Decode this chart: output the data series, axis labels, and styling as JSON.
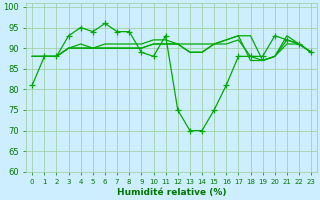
{
  "background_color": "#cceeff",
  "grid_color": "#99cc99",
  "line_color": "#00aa00",
  "marker": "+",
  "markersize": 4,
  "linewidth": 0.9,
  "xlabel": "Humidité relative (%)",
  "xlabel_color": "#007700",
  "tick_color": "#007700",
  "xlim": [
    -0.5,
    23.5
  ],
  "ylim": [
    60,
    101
  ],
  "yticks": [
    60,
    65,
    70,
    75,
    80,
    85,
    90,
    95,
    100
  ],
  "xticks": [
    0,
    1,
    2,
    3,
    4,
    5,
    6,
    7,
    8,
    9,
    10,
    11,
    12,
    13,
    14,
    15,
    16,
    17,
    18,
    19,
    20,
    21,
    22,
    23
  ],
  "series": [
    {
      "y": [
        81,
        88,
        88,
        93,
        95,
        94,
        96,
        94,
        94,
        89,
        88,
        93,
        75,
        70,
        70,
        75,
        81,
        88,
        88,
        88,
        93,
        92,
        91,
        89
      ],
      "has_markers": true
    },
    {
      "y": [
        88,
        88,
        88,
        90,
        91,
        90,
        91,
        91,
        91,
        91,
        92,
        92,
        91,
        91,
        91,
        91,
        92,
        93,
        93,
        87,
        88,
        93,
        91,
        89
      ],
      "has_markers": false
    },
    {
      "y": [
        88,
        88,
        88,
        90,
        90,
        90,
        90,
        90,
        90,
        90,
        91,
        91,
        91,
        89,
        89,
        91,
        92,
        93,
        87,
        87,
        88,
        92,
        91,
        89
      ],
      "has_markers": false
    },
    {
      "y": [
        88,
        88,
        88,
        90,
        90,
        90,
        90,
        90,
        90,
        90,
        91,
        91,
        91,
        89,
        89,
        91,
        91,
        92,
        88,
        87,
        88,
        91,
        91,
        89
      ],
      "has_markers": false
    }
  ],
  "figsize": [
    3.2,
    2.0
  ],
  "dpi": 100
}
